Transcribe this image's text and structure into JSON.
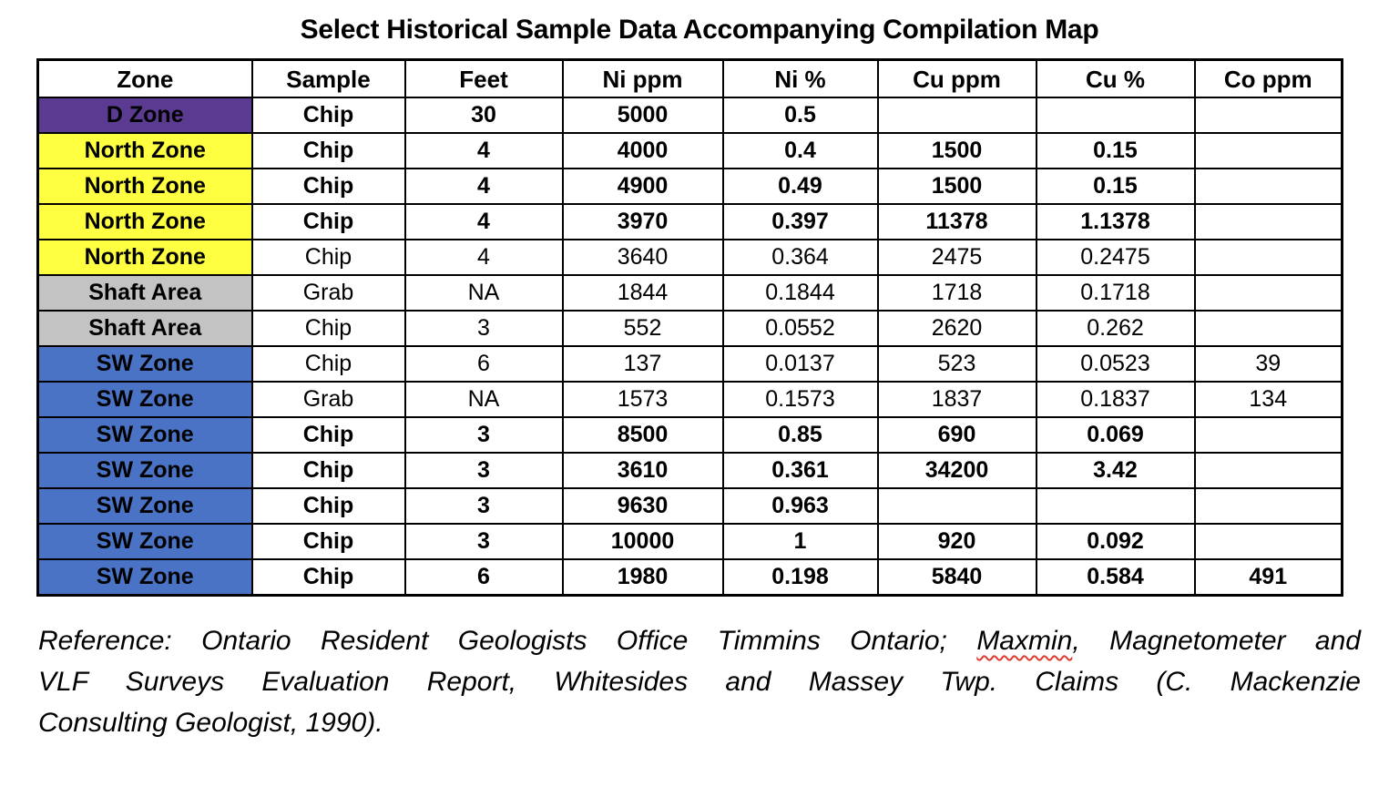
{
  "title": "Select Historical Sample Data Accompanying Compilation Map",
  "colors": {
    "d_zone_bg": "#5B3B92",
    "north_zone_bg": "#FFFF42",
    "shaft_area_bg": "#C3C3C3",
    "sw_zone_bg": "#4A73C6",
    "squiggle_red": "#E03B2F",
    "border": "#000000"
  },
  "table": {
    "columns": [
      "Zone",
      "Sample",
      "Feet",
      "Ni ppm",
      "Ni %",
      "Cu ppm",
      "Cu %",
      "Co ppm"
    ],
    "rows": [
      {
        "zone": "D Zone",
        "bg": "#5B3B92",
        "bold": true,
        "cells": [
          "Chip",
          "30",
          "5000",
          "0.5",
          "",
          "",
          ""
        ]
      },
      {
        "zone": "North Zone",
        "bg": "#FFFF42",
        "bold": true,
        "cells": [
          "Chip",
          "4",
          "4000",
          "0.4",
          "1500",
          "0.15",
          ""
        ]
      },
      {
        "zone": "North Zone",
        "bg": "#FFFF42",
        "bold": true,
        "cells": [
          "Chip",
          "4",
          "4900",
          "0.49",
          "1500",
          "0.15",
          ""
        ]
      },
      {
        "zone": "North Zone",
        "bg": "#FFFF42",
        "bold": true,
        "cells": [
          "Chip",
          "4",
          "3970",
          "0.397",
          "11378",
          "1.1378",
          ""
        ]
      },
      {
        "zone": "North Zone",
        "bg": "#FFFF42",
        "bold": false,
        "cells": [
          "Chip",
          "4",
          "3640",
          "0.364",
          "2475",
          "0.2475",
          ""
        ]
      },
      {
        "zone": "Shaft Area",
        "bg": "#C3C3C3",
        "bold": false,
        "cells": [
          "Grab",
          "NA",
          "1844",
          "0.1844",
          "1718",
          "0.1718",
          ""
        ]
      },
      {
        "zone": "Shaft Area",
        "bg": "#C3C3C3",
        "bold": false,
        "cells": [
          "Chip",
          "3",
          "552",
          "0.0552",
          "2620",
          "0.262",
          ""
        ]
      },
      {
        "zone": "SW Zone",
        "bg": "#4A73C6",
        "bold": false,
        "cells": [
          "Chip",
          "6",
          "137",
          "0.0137",
          "523",
          "0.0523",
          "39"
        ]
      },
      {
        "zone": "SW Zone",
        "bg": "#4A73C6",
        "bold": false,
        "cells": [
          "Grab",
          "NA",
          "1573",
          "0.1573",
          "1837",
          "0.1837",
          "134"
        ]
      },
      {
        "zone": "SW Zone",
        "bg": "#4A73C6",
        "bold": true,
        "cells": [
          "Chip",
          "3",
          "8500",
          "0.85",
          "690",
          "0.069",
          ""
        ]
      },
      {
        "zone": "SW Zone",
        "bg": "#4A73C6",
        "bold": true,
        "cells": [
          "Chip",
          "3",
          "3610",
          "0.361",
          "34200",
          "3.42",
          ""
        ]
      },
      {
        "zone": "SW Zone",
        "bg": "#4A73C6",
        "bold": true,
        "cells": [
          "Chip",
          "3",
          "9630",
          "0.963",
          "",
          "",
          ""
        ]
      },
      {
        "zone": "SW Zone",
        "bg": "#4A73C6",
        "bold": true,
        "cells": [
          "Chip",
          "3",
          "10000",
          "1",
          "920",
          "0.092",
          ""
        ]
      },
      {
        "zone": "SW Zone",
        "bg": "#4A73C6",
        "bold": true,
        "cells": [
          "Chip",
          "6",
          "1980",
          "0.198",
          "5840",
          "0.584",
          "491"
        ]
      }
    ]
  },
  "reference": {
    "line1_before": "Reference: Ontario Resident Geologists Office Timmins Ontario; ",
    "line1_misspelled": "Maxmin",
    "line1_after": ", Magnetometer and",
    "line2": "VLF Surveys Evaluation Report, Whitesides and Massey Twp. Claims (C. Mackenzie",
    "line3": "Consulting Geologist, 1990)."
  }
}
